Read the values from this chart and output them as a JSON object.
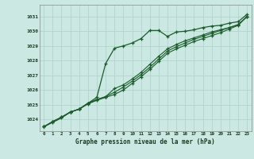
{
  "title": "Graphe pression niveau de la mer (hPa)",
  "background_color": "#cbe8e2",
  "grid_color": "#b0d5cc",
  "line_color": "#1a5c2a",
  "xlim": [
    -0.5,
    23.5
  ],
  "ylim": [
    1023.2,
    1031.8
  ],
  "yticks": [
    1024,
    1025,
    1026,
    1027,
    1028,
    1029,
    1030,
    1031
  ],
  "xticks": [
    0,
    1,
    2,
    3,
    4,
    5,
    6,
    7,
    8,
    9,
    10,
    11,
    12,
    13,
    14,
    15,
    16,
    17,
    18,
    19,
    20,
    21,
    22,
    23
  ],
  "series1_x": [
    0,
    1,
    2,
    3,
    4,
    5,
    6,
    7,
    8,
    9,
    10,
    11,
    12,
    13,
    14,
    15,
    16,
    17,
    18,
    19,
    20,
    21,
    22,
    23
  ],
  "series1_y": [
    1023.5,
    1023.8,
    1024.1,
    1024.5,
    1024.7,
    1025.1,
    1025.5,
    1027.8,
    1028.85,
    1029.0,
    1029.2,
    1029.5,
    1030.05,
    1030.05,
    1029.65,
    1029.95,
    1030.0,
    1030.1,
    1030.25,
    1030.35,
    1030.4,
    1030.55,
    1030.65,
    1031.15
  ],
  "series2_x": [
    0,
    1,
    2,
    3,
    4,
    5,
    6,
    7,
    8,
    9,
    10,
    11,
    12,
    13,
    14,
    15,
    16,
    17,
    18,
    19,
    20,
    21,
    22,
    23
  ],
  "series2_y": [
    1023.5,
    1023.85,
    1024.15,
    1024.5,
    1024.7,
    1025.1,
    1025.35,
    1025.55,
    1026.1,
    1026.35,
    1026.75,
    1027.2,
    1027.75,
    1028.3,
    1028.8,
    1029.1,
    1029.35,
    1029.55,
    1029.75,
    1029.95,
    1030.1,
    1030.25,
    1030.45,
    1031.0
  ],
  "series3_x": [
    0,
    1,
    2,
    3,
    4,
    5,
    6,
    7,
    8,
    9,
    10,
    11,
    12,
    13,
    14,
    15,
    16,
    17,
    18,
    19,
    20,
    21,
    22,
    23
  ],
  "series3_y": [
    1023.5,
    1023.85,
    1024.15,
    1024.5,
    1024.7,
    1025.1,
    1025.35,
    1025.55,
    1025.85,
    1026.2,
    1026.6,
    1027.05,
    1027.55,
    1028.1,
    1028.65,
    1028.95,
    1029.2,
    1029.45,
    1029.65,
    1029.85,
    1030.05,
    1030.25,
    1030.45,
    1031.0
  ],
  "series4_x": [
    0,
    1,
    2,
    3,
    4,
    5,
    6,
    7,
    8,
    9,
    10,
    11,
    12,
    13,
    14,
    15,
    16,
    17,
    18,
    19,
    20,
    21,
    22,
    23
  ],
  "series4_y": [
    1023.5,
    1023.85,
    1024.15,
    1024.5,
    1024.7,
    1025.05,
    1025.3,
    1025.5,
    1025.7,
    1026.0,
    1026.45,
    1026.9,
    1027.4,
    1027.95,
    1028.5,
    1028.8,
    1029.05,
    1029.3,
    1029.5,
    1029.7,
    1029.9,
    1030.15,
    1030.4,
    1031.0
  ]
}
